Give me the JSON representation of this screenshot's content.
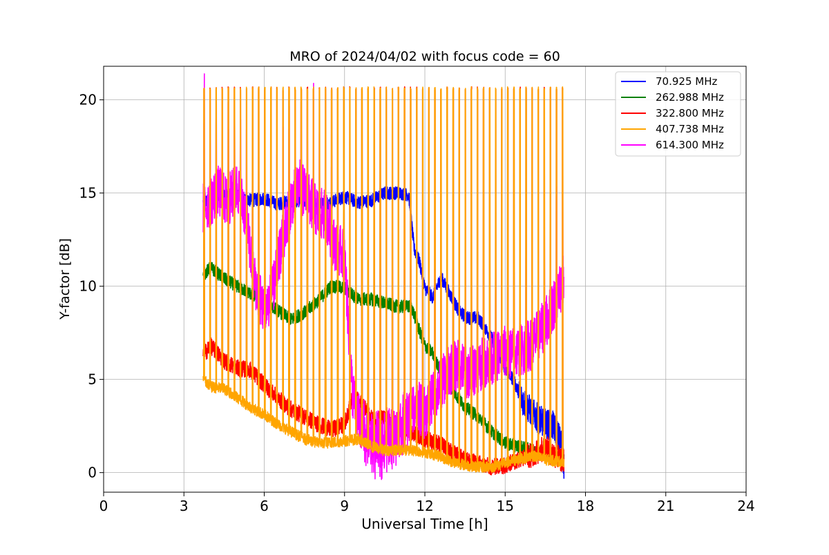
{
  "chart_data": {
    "type": "line",
    "title": "MRO of 2024/04/02 with focus code = 60",
    "xlabel": "Universal Time [h]",
    "ylabel": "Y-factor [dB]",
    "xlim": [
      0,
      24
    ],
    "ylim": [
      -1.05,
      21.8
    ],
    "xticks": [
      0,
      3,
      6,
      9,
      12,
      15,
      18,
      21,
      24
    ],
    "yticks": [
      0,
      5,
      10,
      15,
      20
    ],
    "grid": true,
    "legend_position": "top-right",
    "cycle": {
      "start_h": 3.72,
      "end_h": 17.22,
      "period_h": 0.227,
      "spike_top_db": 20.6,
      "flat_level_614_db": 10.9,
      "flat_level_407_db": 10.8
    },
    "series": [
      {
        "name": " 70.925 MHz",
        "color": "#0000ff",
        "x": [
          3.72,
          4.2,
          4.8,
          5.5,
          6.0,
          6.5,
          7.0,
          7.5,
          8.0,
          8.5,
          9.0,
          9.5,
          10.0,
          10.5,
          11.0,
          11.4,
          11.6,
          11.8,
          12.0,
          12.3,
          12.6,
          13.0,
          13.3,
          13.6,
          14.0,
          14.5,
          15.0,
          15.3,
          15.6,
          16.0,
          16.4,
          16.8,
          17.1,
          17.2
        ],
        "y": [
          14.5,
          14.8,
          14.9,
          14.6,
          14.7,
          14.4,
          14.6,
          14.6,
          14.4,
          14.5,
          14.8,
          14.5,
          14.6,
          15.0,
          15.0,
          14.9,
          12.0,
          11.3,
          9.9,
          9.4,
          10.5,
          9.4,
          8.6,
          8.3,
          8.3,
          7.2,
          5.6,
          5.0,
          4.0,
          3.2,
          2.7,
          2.5,
          1.6,
          0.3
        ]
      },
      {
        "name": "262.988 MHz",
        "color": "#008000",
        "x": [
          3.72,
          4.0,
          4.5,
          5.0,
          5.5,
          6.0,
          6.5,
          7.0,
          7.5,
          8.0,
          8.5,
          9.0,
          9.5,
          10.0,
          10.5,
          11.0,
          11.5,
          11.8,
          12.0,
          12.3,
          12.6,
          13.0,
          13.5,
          14.0,
          14.5,
          15.0,
          15.5,
          16.0,
          16.5,
          17.0,
          17.2
        ],
        "y": [
          10.6,
          11.0,
          10.4,
          10.0,
          9.6,
          9.3,
          8.7,
          8.2,
          8.6,
          9.2,
          10.0,
          9.9,
          9.3,
          9.3,
          9.1,
          8.9,
          8.9,
          7.6,
          6.8,
          6.4,
          5.3,
          4.5,
          3.5,
          3.0,
          2.2,
          1.6,
          1.4,
          1.2,
          1.0,
          0.8,
          0.8
        ]
      },
      {
        "name": "322.800 MHz",
        "color": "#ff0000",
        "x": [
          3.72,
          4.0,
          4.5,
          5.0,
          5.5,
          6.0,
          6.5,
          7.0,
          7.5,
          8.0,
          8.5,
          9.0,
          9.3,
          9.6,
          10.0,
          10.5,
          11.0,
          11.5,
          12.0,
          12.5,
          13.0,
          13.5,
          14.0,
          14.5,
          15.0,
          15.5,
          16.0,
          16.5,
          17.0,
          17.2
        ],
        "y": [
          6.3,
          6.8,
          6.0,
          5.6,
          5.5,
          4.7,
          4.0,
          3.4,
          3.0,
          2.6,
          2.3,
          2.6,
          4.0,
          3.8,
          2.9,
          2.9,
          2.6,
          2.2,
          1.8,
          1.6,
          1.1,
          0.7,
          0.5,
          0.3,
          0.4,
          0.7,
          1.0,
          1.3,
          0.8,
          0.6
        ]
      },
      {
        "name": "407.738 MHz",
        "color": "#ffa500",
        "x": [
          3.72,
          4.0,
          4.5,
          5.0,
          5.5,
          6.0,
          6.5,
          7.0,
          7.5,
          8.0,
          8.5,
          9.0,
          9.5,
          10.0,
          10.5,
          11.0,
          11.5,
          12.0,
          12.5,
          13.0,
          13.5,
          14.0,
          14.5,
          15.0,
          15.5,
          16.0,
          16.5,
          17.0,
          17.2
        ],
        "y": [
          5.0,
          4.6,
          4.5,
          4.0,
          3.5,
          3.1,
          2.6,
          2.2,
          1.8,
          1.6,
          1.6,
          1.7,
          1.8,
          1.4,
          1.2,
          1.2,
          1.2,
          1.1,
          0.9,
          0.6,
          0.4,
          0.3,
          0.3,
          0.5,
          0.7,
          0.9,
          0.7,
          0.6,
          0.6
        ]
      },
      {
        "name": "614.300 MHz",
        "color": "#ff00ff",
        "x": [
          3.72,
          4.0,
          4.3,
          4.6,
          5.0,
          5.3,
          5.6,
          6.0,
          6.3,
          6.6,
          7.0,
          7.3,
          7.6,
          8.0,
          8.3,
          8.6,
          9.0,
          9.3,
          9.6,
          10.0,
          10.3,
          10.6,
          11.0,
          11.3,
          11.6,
          12.0,
          12.3,
          12.6,
          13.0,
          13.3,
          13.6,
          14.0,
          14.3,
          14.6,
          15.0,
          15.3,
          15.6,
          16.0,
          16.3,
          16.6,
          17.0,
          17.2
        ],
        "y": [
          14.2,
          14.6,
          15.1,
          14.5,
          15.3,
          13.9,
          10.5,
          8.6,
          9.6,
          11.9,
          14.5,
          15.5,
          14.8,
          13.9,
          13.8,
          12.3,
          11.6,
          4.2,
          2.5,
          1.6,
          1.5,
          1.8,
          2.2,
          2.8,
          3.6,
          3.2,
          4.0,
          4.8,
          5.6,
          5.8,
          5.3,
          5.7,
          6.0,
          6.2,
          6.5,
          6.4,
          6.6,
          6.9,
          7.5,
          8.3,
          9.7,
          10.5
        ]
      }
    ]
  }
}
